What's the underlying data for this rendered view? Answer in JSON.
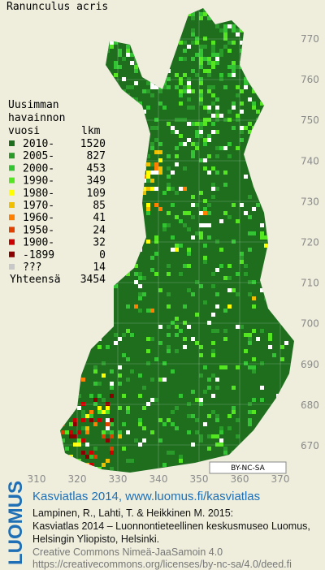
{
  "title": "Ranunculus acris",
  "legend": {
    "heading": [
      "Uusimman",
      "havainnon"
    ],
    "columns": [
      "vuosi",
      "lkm"
    ],
    "entries": [
      {
        "label": "2010-",
        "count": 1520,
        "color": "#1e6e1e"
      },
      {
        "label": "2005-",
        "count": 827,
        "color": "#2a9a2a"
      },
      {
        "label": "2000-",
        "count": 453,
        "color": "#33c433"
      },
      {
        "label": "1990-",
        "count": 349,
        "color": "#55e622"
      },
      {
        "label": "1980-",
        "count": 109,
        "color": "#ffff00"
      },
      {
        "label": "1970-",
        "count": 85,
        "color": "#f0c000"
      },
      {
        "label": "1960-",
        "count": 41,
        "color": "#ff8000"
      },
      {
        "label": "1950-",
        "count": 24,
        "color": "#e04000"
      },
      {
        "label": "1900-",
        "count": 32,
        "color": "#cc0000"
      },
      {
        "label": "-1899",
        "count": 0,
        "color": "#8b0000"
      },
      {
        "label": "???",
        "count": 14,
        "color": "#c8c8c8"
      }
    ],
    "total_label": "Yhteensä",
    "total": 3454
  },
  "map": {
    "y_labels": [
      770,
      760,
      750,
      740,
      730,
      720,
      710,
      700,
      690,
      680,
      670
    ],
    "x_labels": [
      310,
      320,
      330,
      340,
      350,
      360,
      370
    ]
  },
  "license_badge": "BY-NC-SA",
  "logo": "LUOMUS",
  "footer": {
    "link": "Kasviatlas 2014, www.luomus.fi/kasviatlas",
    "citation": [
      "Lampinen, R., Lahti, T. & Heikkinen M. 2015:",
      "Kasviatlas 2014 – Luonnontieteellinen keskusmuseo Luomus,",
      "Helsingin Yliopisto, Helsinki."
    ],
    "license": [
      "Creative Commons Nimeä-JaaSamoin 4.0",
      "https://creativecommons.org/licenses/by-nc-sa/4.0/deed.fi"
    ]
  }
}
